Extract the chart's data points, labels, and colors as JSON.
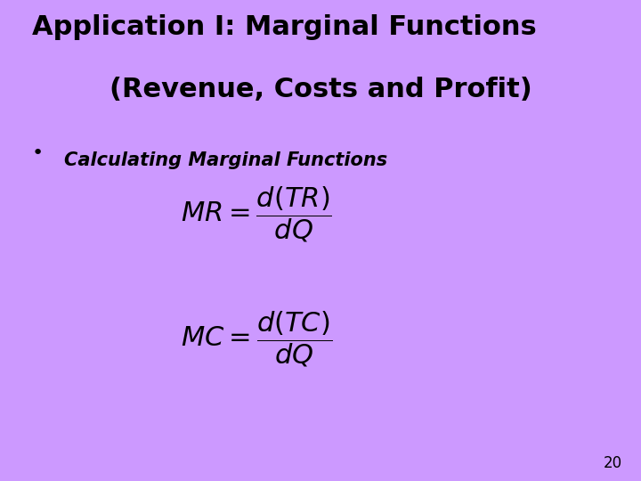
{
  "background_color": "#cc99ff",
  "title_line1": "Application I: Marginal Functions",
  "title_line2": "(Revenue, Costs and Profit)",
  "title_fontsize": 22,
  "title_color": "#000000",
  "bullet": "•",
  "bullet_fontsize": 16,
  "subtitle": "Calculating Marginal Functions",
  "subtitle_fontsize": 15,
  "formula_fontsize": 22,
  "page_number": "20",
  "page_number_fontsize": 12
}
